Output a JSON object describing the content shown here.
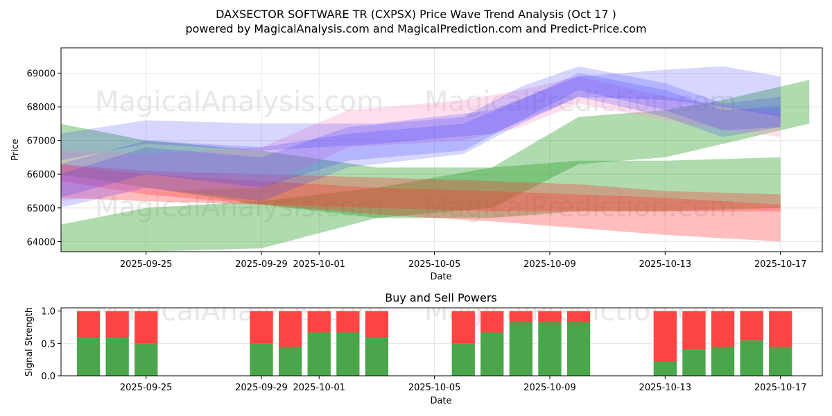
{
  "header": {
    "title": "DAXSECTOR SOFTWARE TR (CXPSX) Price Wave Trend Analysis (Oct 17 )",
    "subtitle": "powered by MagicalAnalysis.com and MagicalPrediction.com and Predict-Price.com"
  },
  "watermarks": [
    "MagicalAnalysis.com",
    "MagicalPrediction.com"
  ],
  "colors": {
    "green_band": "#2ca02c",
    "red_band": "#ff3333",
    "blue_band": "#3333ff",
    "pink_band": "#ff99cc",
    "buy": "#4aa64a",
    "sell": "#ff4444"
  },
  "chart_data": [
    {
      "type": "area",
      "title": "",
      "xlabel": "Date",
      "ylabel": "Price",
      "xlim": [
        "2025-09-22",
        "2025-10-18"
      ],
      "ylim": [
        63700,
        69750
      ],
      "x_ticks": [
        "2025-09-25",
        "2025-09-29",
        "2025-10-01",
        "2025-10-05",
        "2025-10-09",
        "2025-10-13",
        "2025-10-17"
      ],
      "y_ticks": [
        64000,
        65000,
        66000,
        67000,
        68000,
        69000
      ],
      "grid": true,
      "series": [
        {
          "name": "green band 1",
          "color": "green",
          "x": [
            "2025-09-22",
            "2025-09-25",
            "2025-09-29",
            "2025-10-03",
            "2025-10-07",
            "2025-10-10",
            "2025-10-13",
            "2025-10-15",
            "2025-10-18"
          ],
          "upper": [
            64500,
            65000,
            65200,
            65600,
            66200,
            67700,
            67900,
            68200,
            68800
          ],
          "lower": [
            63300,
            63700,
            63800,
            64700,
            65000,
            66300,
            66500,
            66900,
            67500
          ]
        },
        {
          "name": "green band 2",
          "color": "green",
          "x": [
            "2025-09-22",
            "2025-09-25",
            "2025-09-29",
            "2025-10-03",
            "2025-10-07",
            "2025-10-10",
            "2025-10-13",
            "2025-10-17"
          ],
          "upper": [
            67500,
            67000,
            66700,
            66200,
            66200,
            66400,
            66400,
            66500
          ],
          "lower": [
            66000,
            65600,
            65100,
            64700,
            64700,
            64900,
            64900,
            65000
          ]
        },
        {
          "name": "red band 1",
          "color": "red",
          "x": [
            "2025-09-22",
            "2025-09-25",
            "2025-09-29",
            "2025-10-03",
            "2025-10-07",
            "2025-10-10",
            "2025-10-13",
            "2025-10-17"
          ],
          "upper": [
            66300,
            66000,
            65800,
            65600,
            65500,
            65400,
            65300,
            65100
          ],
          "lower": [
            65800,
            65400,
            65100,
            64800,
            64600,
            64400,
            64200,
            64000
          ]
        },
        {
          "name": "red band 2",
          "color": "red",
          "x": [
            "2025-09-22",
            "2025-09-25",
            "2025-09-29",
            "2025-10-03",
            "2025-10-07",
            "2025-10-10",
            "2025-10-13",
            "2025-10-17"
          ],
          "upper": [
            66300,
            66100,
            66000,
            65900,
            65800,
            65700,
            65500,
            65400
          ],
          "lower": [
            65300,
            65200,
            65100,
            65000,
            64900,
            64900,
            64900,
            64900
          ]
        },
        {
          "name": "pink band",
          "color": "pink",
          "x": [
            "2025-09-22",
            "2025-09-25",
            "2025-09-29",
            "2025-10-02",
            "2025-10-06",
            "2025-10-08",
            "2025-10-10",
            "2025-10-13",
            "2025-10-17"
          ],
          "upper": [
            66700,
            66600,
            66800,
            67900,
            68200,
            68500,
            68900,
            68300,
            67800
          ],
          "lower": [
            65200,
            65500,
            65600,
            66800,
            67000,
            67400,
            68100,
            67600,
            67100
          ]
        },
        {
          "name": "blue band 1",
          "color": "blue",
          "x": [
            "2025-09-22",
            "2025-09-25",
            "2025-09-29",
            "2025-10-03",
            "2025-10-07",
            "2025-10-10",
            "2025-10-13",
            "2025-10-15",
            "2025-10-17"
          ],
          "upper": [
            67200,
            67600,
            67500,
            67500,
            67900,
            68900,
            69100,
            69200,
            68900
          ],
          "lower": [
            66400,
            66900,
            66700,
            66900,
            67200,
            68300,
            68200,
            68000,
            67700
          ]
        },
        {
          "name": "blue band 2",
          "color": "blue",
          "x": [
            "2025-09-22",
            "2025-09-25",
            "2025-09-29",
            "2025-10-02",
            "2025-10-06",
            "2025-10-08",
            "2025-10-10",
            "2025-10-13",
            "2025-10-15",
            "2025-10-17"
          ],
          "upper": [
            66000,
            66800,
            66500,
            67400,
            67700,
            68600,
            69200,
            68700,
            68100,
            68300
          ],
          "lower": [
            65000,
            65600,
            65200,
            66200,
            66600,
            67500,
            68300,
            67700,
            67100,
            67400
          ]
        },
        {
          "name": "blue band 3",
          "color": "blue",
          "x": [
            "2025-09-22",
            "2025-09-25",
            "2025-09-29",
            "2025-10-02",
            "2025-10-06",
            "2025-10-08",
            "2025-10-10",
            "2025-10-13",
            "2025-10-15",
            "2025-10-17"
          ],
          "upper": [
            66300,
            67000,
            66800,
            67200,
            67500,
            68200,
            69000,
            68500,
            67900,
            68000
          ],
          "lower": [
            65300,
            66000,
            65600,
            66400,
            66700,
            67600,
            68500,
            67900,
            67300,
            67400
          ]
        }
      ]
    },
    {
      "type": "bar",
      "title": "Buy and Sell Powers",
      "xlabel": "Date",
      "ylabel": "Signal Strength",
      "ylim": [
        0,
        1.05
      ],
      "y_ticks": [
        0.0,
        0.5,
        1.0
      ],
      "x_ticks": [
        "2025-09-25",
        "2025-09-29",
        "2025-10-01",
        "2025-10-05",
        "2025-10-09",
        "2025-10-13",
        "2025-10-17"
      ],
      "categories": [
        "2025-09-23",
        "2025-09-24",
        "2025-09-25",
        "2025-09-29",
        "2025-09-30",
        "2025-10-01",
        "2025-10-02",
        "2025-10-03",
        "2025-10-06",
        "2025-10-07",
        "2025-10-08",
        "2025-10-09",
        "2025-10-10",
        "2025-10-13",
        "2025-10-14",
        "2025-10-15",
        "2025-10-16",
        "2025-10-17"
      ],
      "series": [
        {
          "name": "Buy",
          "color": "green",
          "values": [
            0.6,
            0.6,
            0.5,
            0.5,
            0.45,
            0.67,
            0.67,
            0.6,
            0.5,
            0.67,
            0.83,
            0.83,
            0.83,
            0.22,
            0.4,
            0.45,
            0.55,
            0.45
          ]
        },
        {
          "name": "Sell",
          "color": "red",
          "values": [
            0.4,
            0.4,
            0.5,
            0.5,
            0.55,
            0.33,
            0.33,
            0.4,
            0.5,
            0.33,
            0.17,
            0.17,
            0.17,
            0.78,
            0.6,
            0.55,
            0.45,
            0.55
          ]
        }
      ]
    }
  ]
}
